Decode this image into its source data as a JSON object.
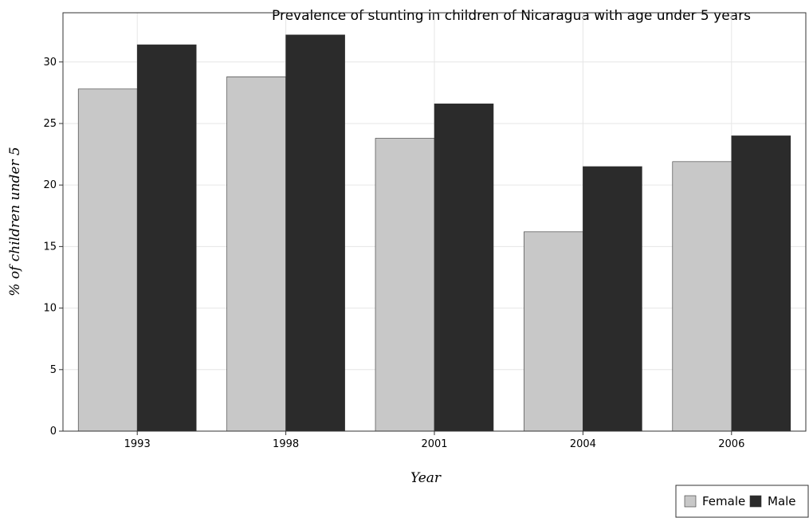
{
  "chart_data": {
    "type": "bar",
    "title": "Prevalence of stunting in children of Nicaragua with age under 5 years",
    "xlabel": "Year",
    "ylabel": "% of children under 5",
    "categories": [
      "1993",
      "1998",
      "2001",
      "2004",
      "2006"
    ],
    "series": [
      {
        "name": "Female",
        "values": [
          27.8,
          28.8,
          23.8,
          16.2,
          21.9
        ],
        "color": "#c8c8c8"
      },
      {
        "name": "Male",
        "values": [
          31.4,
          32.2,
          26.6,
          21.5,
          24.0
        ],
        "color": "#2b2b2b"
      }
    ],
    "ylim": [
      0,
      34
    ],
    "yticks": [
      0,
      5,
      10,
      15,
      20,
      25,
      30
    ],
    "grid": true,
    "legend_position": "bottom-right"
  }
}
